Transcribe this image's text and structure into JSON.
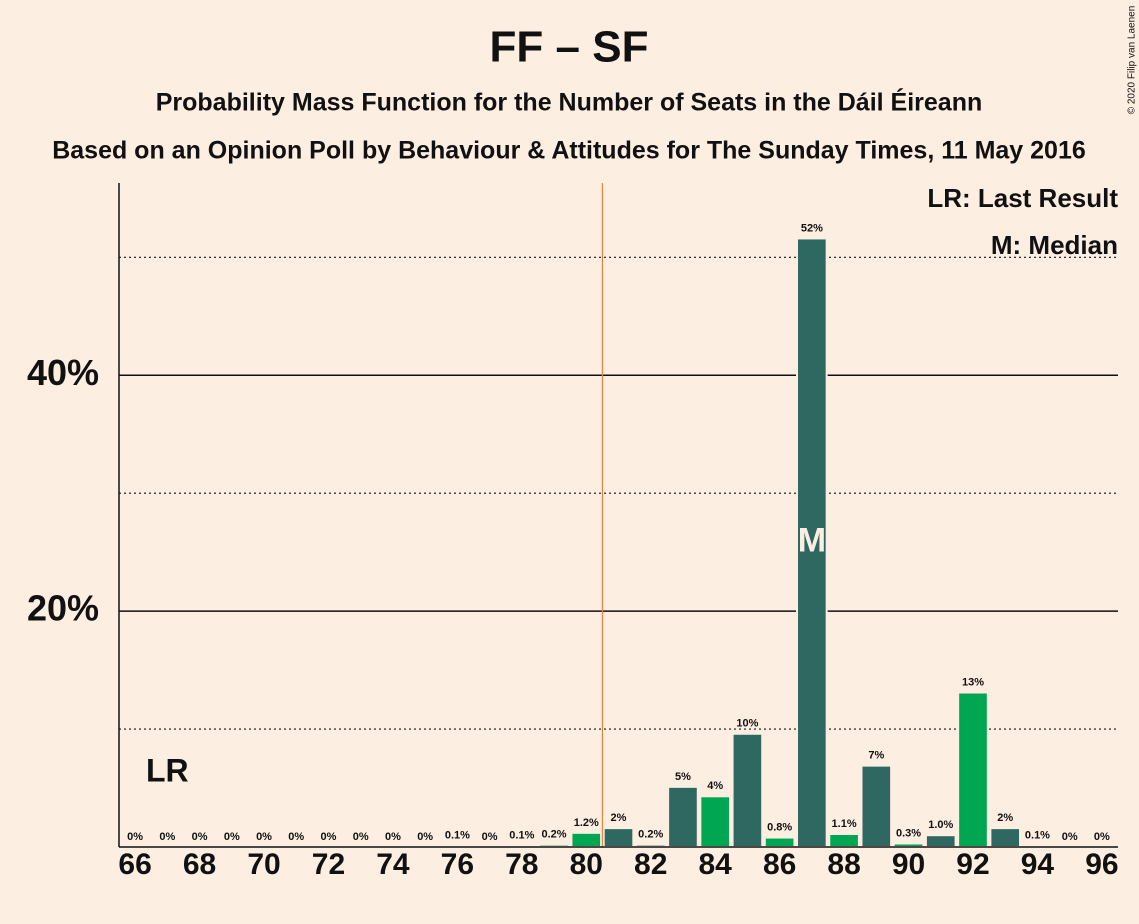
{
  "chart_data": {
    "type": "bar",
    "title": "FF – SF",
    "subtitle": "Probability Mass Function for the Number of Seats in the Dáil Éireann",
    "subtitle2": "Based on an Opinion Poll by Behaviour & Attitudes for The Sunday Times, 11 May 2016",
    "copyright": "© 2020 Filip van Laenen",
    "x": [
      66,
      67,
      68,
      69,
      70,
      71,
      72,
      73,
      74,
      75,
      76,
      77,
      78,
      79,
      80,
      81,
      82,
      83,
      84,
      85,
      86,
      87,
      88,
      89,
      90,
      91,
      92,
      93,
      94,
      95,
      96
    ],
    "values": [
      0,
      0,
      0,
      0,
      0,
      0,
      0,
      0,
      0,
      0,
      0.1,
      0,
      0.1,
      0.2,
      1.2,
      1.6,
      0.2,
      5.1,
      4.3,
      9.6,
      0.8,
      51.6,
      1.1,
      6.9,
      0.3,
      1.0,
      13.1,
      1.6,
      0.1,
      0,
      0
    ],
    "value_labels": [
      "0%",
      "0%",
      "0%",
      "0%",
      "0%",
      "0%",
      "0%",
      "0%",
      "0%",
      "0%",
      "0.1%",
      "0%",
      "0.1%",
      "0.2%",
      "1.2%",
      "2%",
      "0.2%",
      "5%",
      "4%",
      "10%",
      "0.8%",
      "52%",
      "1.1%",
      "7%",
      "0.3%",
      "1.0%",
      "13%",
      "2%",
      "0.1%",
      "0%",
      "0%"
    ],
    "colors": [
      "#2e6860",
      "#00a651",
      "#2e6860",
      "#00a651",
      "#2e6860",
      "#00a651",
      "#2e6860",
      "#00a651",
      "#2e6860",
      "#00a651",
      "#2e6860",
      "#00a651",
      "#2e6860",
      "#00a651",
      "#00a651",
      "#2e6860",
      "#2e6860",
      "#2e6860",
      "#00a651",
      "#2e6860",
      "#00a651",
      "#2e6860",
      "#00a651",
      "#2e6860",
      "#00a651",
      "#2e6860",
      "#00a651",
      "#2e6860",
      "#00a651",
      "#2e6860",
      "#00a651"
    ],
    "xlim": [
      65.5,
      96.5
    ],
    "xticks": [
      66,
      68,
      70,
      72,
      74,
      76,
      78,
      80,
      82,
      84,
      86,
      88,
      90,
      92,
      94,
      96
    ],
    "ylim": [
      0,
      56.3
    ],
    "yticks": [
      {
        "value": 20,
        "label": "20%"
      },
      {
        "value": 40,
        "label": "40%"
      }
    ],
    "minor_grid": [
      10,
      30,
      50
    ],
    "last_result": 80.5,
    "last_result_label": "LR",
    "median": 87,
    "median_label": "M",
    "legend": [
      "LR: Last Result",
      "M: Median"
    ]
  }
}
